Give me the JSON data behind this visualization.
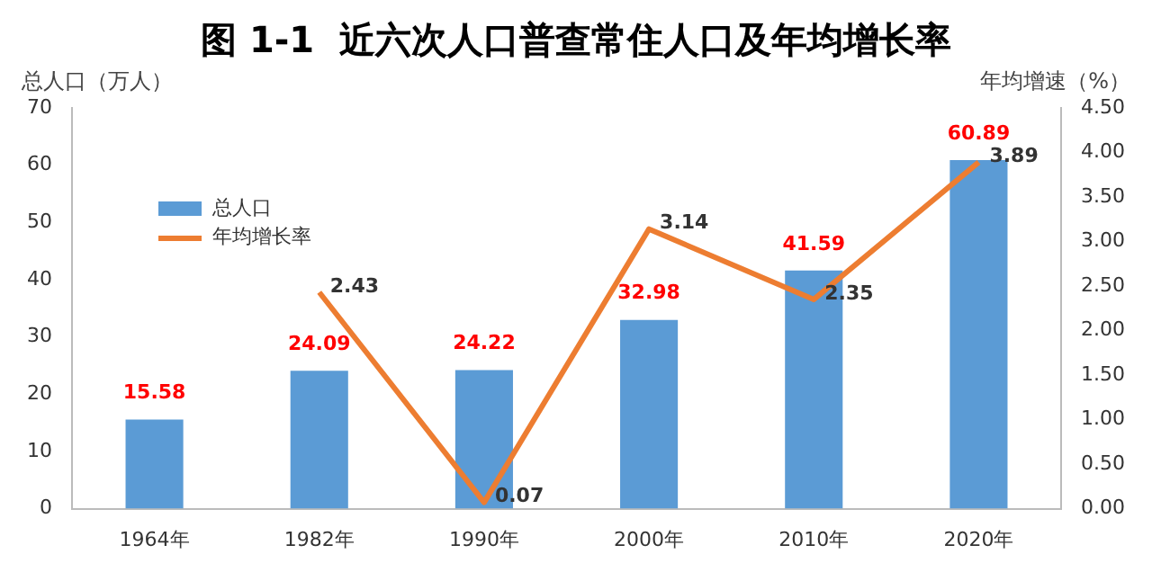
{
  "chart_data": {
    "type": "bar",
    "title": "图 1-1  近六次人口普查常住人口及年均增长率",
    "ylabel": "总人口（万人）",
    "y2label": "年均增速（%）",
    "categories": [
      "1964年",
      "1982年",
      "1990年",
      "2000年",
      "2010年",
      "2020年"
    ],
    "series": [
      {
        "name": "总人口",
        "color": "#5b9bd5",
        "values": [
          15.58,
          24.09,
          24.22,
          32.98,
          41.59,
          60.89
        ]
      },
      {
        "name": "年均增长率",
        "type": "line",
        "axis": "y2",
        "color": "#ed7d31",
        "values": [
          null,
          2.43,
          0.07,
          3.14,
          2.35,
          3.89
        ]
      }
    ],
    "ylim": [
      0,
      70
    ],
    "yticks": [
      0,
      10,
      20,
      30,
      40,
      50,
      60,
      70
    ],
    "y2lim": [
      0,
      4.5
    ],
    "y2ticks": [
      {
        "value": 0,
        "label": "0.00"
      },
      {
        "value": 0.5,
        "label": "0.50"
      },
      {
        "value": 1,
        "label": "1.00"
      },
      {
        "value": 1.5,
        "label": "1.50"
      },
      {
        "value": 2,
        "label": "2.00"
      },
      {
        "value": 2.5,
        "label": "2.50"
      },
      {
        "value": 3,
        "label": "3.00"
      },
      {
        "value": 3.5,
        "label": "3.50"
      },
      {
        "value": 4,
        "label": "4.00"
      },
      {
        "value": 4.5,
        "label": "4.50"
      }
    ],
    "data_labels": true,
    "legend": "top left",
    "grid": false,
    "marker": "none",
    "line_style": "solid"
  }
}
